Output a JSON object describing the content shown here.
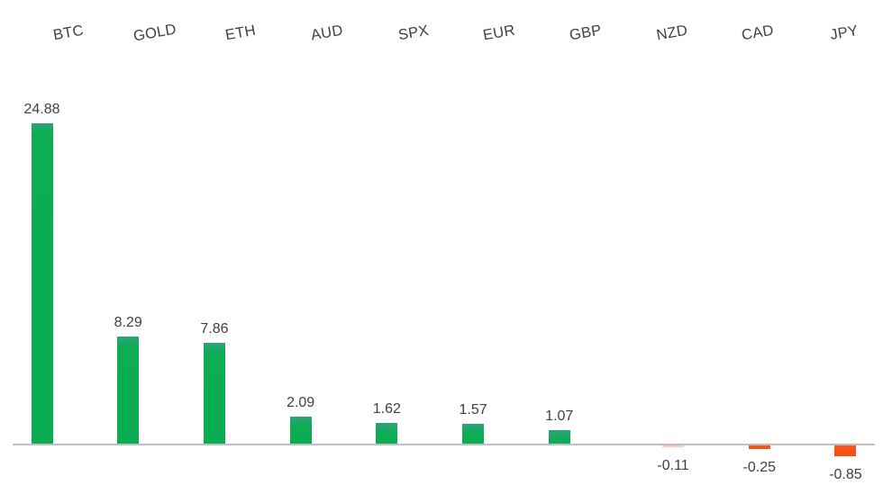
{
  "chart_data": {
    "type": "bar",
    "title": "",
    "categories": [
      "BTC",
      "GOLD",
      "ETH",
      "AUD",
      "SPX",
      "EUR",
      "GBP",
      "NZD",
      "CAD",
      "JPY"
    ],
    "series": [
      {
        "name": "gainers",
        "color": "#0cad53",
        "values": [
          24.88,
          8.29,
          7.86,
          2.09,
          1.62,
          1.57,
          1.07,
          null,
          null,
          null
        ]
      },
      {
        "name": "losers",
        "color": "#f4500f",
        "values": [
          null,
          null,
          null,
          null,
          null,
          null,
          null,
          -0.11,
          -0.25,
          -0.85
        ]
      }
    ],
    "data_labels": [
      "24.88",
      "8.29",
      "7.86",
      "2.09",
      "1.62",
      "1.57",
      "1.07",
      "-0.11",
      "-0.25",
      "-0.85"
    ],
    "category_labels_position": "top",
    "category_label_rotation_deg": -10,
    "ylim": [
      -0.85,
      24.88
    ],
    "grid": false,
    "legend": "none",
    "axis_line_color": "#c0c0c0",
    "label_color": "#3f3f3f",
    "background": "#ffffff"
  }
}
